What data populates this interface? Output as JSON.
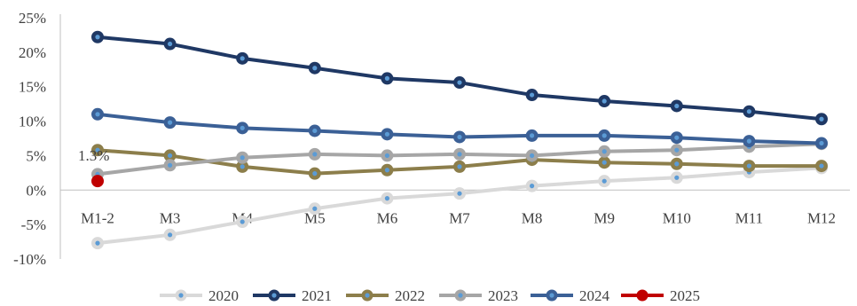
{
  "chart_data": {
    "type": "line",
    "title": "",
    "xlabel": "",
    "ylabel": "",
    "categories": [
      "M1-2",
      "M3",
      "M4",
      "M5",
      "M6",
      "M7",
      "M8",
      "M9",
      "M10",
      "M11",
      "M12"
    ],
    "yticks": [
      "25%",
      "20%",
      "15%",
      "10%",
      "5%",
      "0%",
      "-5%",
      "-10%"
    ],
    "ylim": [
      -10,
      25
    ],
    "grid": false,
    "legend": "bottom",
    "annotation": {
      "series": "2025",
      "category": "M1-2",
      "text": "1.3%"
    },
    "series": [
      {
        "name": "2020",
        "color": "#d9d9d9",
        "values": [
          -7.7,
          -6.5,
          -4.6,
          -2.7,
          -1.2,
          -0.5,
          0.6,
          1.3,
          1.8,
          2.6,
          3.2
        ]
      },
      {
        "name": "2021",
        "color": "#1f3864",
        "values": [
          22.2,
          21.2,
          19.1,
          17.7,
          16.2,
          15.6,
          13.8,
          12.9,
          12.2,
          11.4,
          10.3
        ]
      },
      {
        "name": "2022",
        "color": "#8c7e4b",
        "values": [
          5.8,
          5.0,
          3.4,
          2.4,
          2.9,
          3.4,
          4.4,
          4.0,
          3.8,
          3.5,
          3.5
        ]
      },
      {
        "name": "2023",
        "color": "#a6a6a6",
        "values": [
          2.3,
          3.6,
          4.7,
          5.2,
          5.0,
          5.2,
          5.0,
          5.6,
          5.8,
          6.3,
          6.7
        ]
      },
      {
        "name": "2024",
        "color": "#3b6096",
        "values": [
          11.0,
          9.8,
          9.0,
          8.6,
          8.1,
          7.7,
          7.9,
          7.9,
          7.6,
          7.1,
          6.8
        ]
      },
      {
        "name": "2025",
        "color": "#c00000",
        "values": [
          1.3,
          null,
          null,
          null,
          null,
          null,
          null,
          null,
          null,
          null,
          null
        ]
      }
    ]
  }
}
